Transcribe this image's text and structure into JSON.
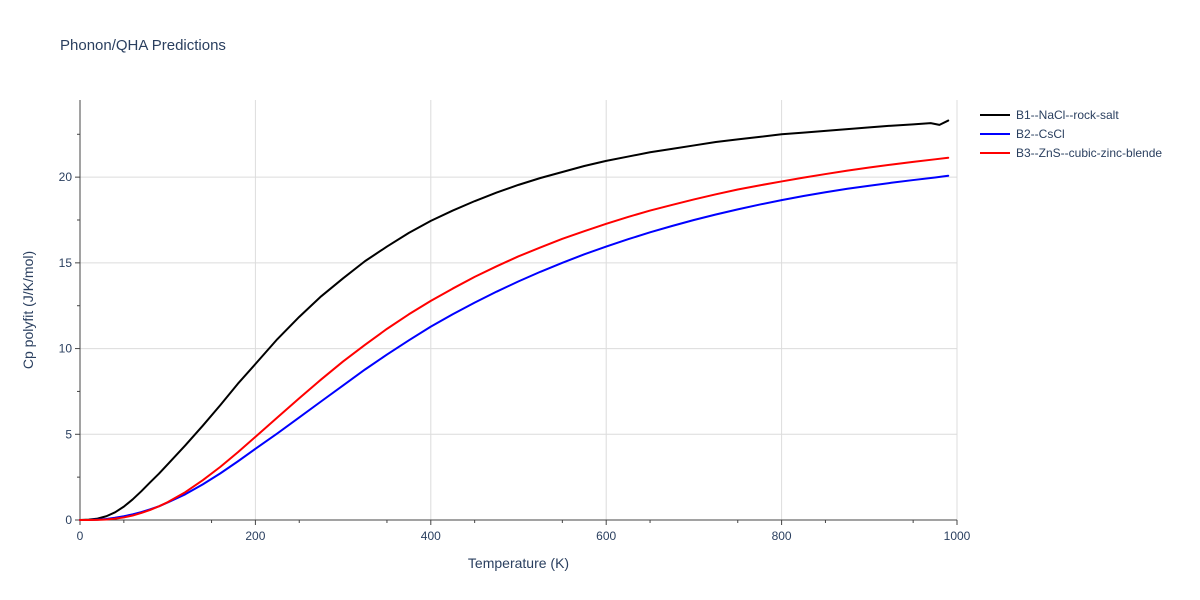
{
  "chart_data": {
    "type": "line",
    "title": "Phonon/QHA Predictions",
    "xlabel": "Temperature (K)",
    "ylabel": "Cp polyfit (J/K/mol)",
    "xlim": [
      0,
      1000
    ],
    "ylim": [
      0,
      24.5
    ],
    "xticks": [
      0,
      200,
      400,
      600,
      800,
      1000
    ],
    "yticks": [
      0,
      5,
      10,
      15,
      20
    ],
    "grid": true,
    "legend_position": "top-right outside",
    "series": [
      {
        "name": "B1--NaCl--rock-salt",
        "color": "#000000",
        "x": [
          0,
          10,
          20,
          30,
          40,
          50,
          60,
          70,
          80,
          90,
          100,
          120,
          140,
          160,
          180,
          200,
          225,
          250,
          275,
          300,
          325,
          350,
          375,
          400,
          425,
          450,
          475,
          500,
          525,
          550,
          575,
          600,
          625,
          650,
          675,
          700,
          725,
          750,
          775,
          800,
          825,
          850,
          875,
          900,
          925,
          950,
          970,
          980,
          990
        ],
        "y": [
          0,
          0.02,
          0.08,
          0.22,
          0.45,
          0.78,
          1.2,
          1.68,
          2.2,
          2.7,
          3.25,
          4.35,
          5.5,
          6.7,
          7.95,
          9.1,
          10.55,
          11.85,
          13.05,
          14.1,
          15.1,
          15.95,
          16.75,
          17.45,
          18.05,
          18.6,
          19.1,
          19.55,
          19.95,
          20.3,
          20.65,
          20.95,
          21.2,
          21.45,
          21.65,
          21.85,
          22.05,
          22.2,
          22.35,
          22.5,
          22.6,
          22.7,
          22.8,
          22.9,
          23.0,
          23.08,
          23.15,
          23.05,
          23.3
        ]
      },
      {
        "name": "B2--CsCl",
        "color": "#0000ff",
        "x": [
          0,
          10,
          20,
          30,
          40,
          50,
          60,
          70,
          80,
          90,
          100,
          120,
          140,
          160,
          180,
          200,
          225,
          250,
          275,
          300,
          325,
          350,
          375,
          400,
          425,
          450,
          475,
          500,
          525,
          550,
          575,
          600,
          625,
          650,
          675,
          700,
          725,
          750,
          775,
          800,
          825,
          850,
          875,
          900,
          925,
          950,
          975,
          990
        ],
        "y": [
          0,
          0.0,
          0.02,
          0.06,
          0.13,
          0.22,
          0.33,
          0.46,
          0.62,
          0.8,
          1.02,
          1.5,
          2.08,
          2.72,
          3.42,
          4.15,
          5.05,
          5.98,
          6.92,
          7.85,
          8.78,
          9.65,
          10.48,
          11.28,
          12.0,
          12.68,
          13.32,
          13.92,
          14.48,
          15.0,
          15.5,
          15.95,
          16.38,
          16.78,
          17.15,
          17.5,
          17.82,
          18.12,
          18.4,
          18.66,
          18.9,
          19.12,
          19.32,
          19.5,
          19.67,
          19.83,
          19.98,
          20.08
        ]
      },
      {
        "name": "B3--ZnS--cubic-zinc-blende",
        "color": "#ff0000",
        "x": [
          0,
          10,
          20,
          30,
          40,
          50,
          60,
          70,
          80,
          90,
          100,
          120,
          140,
          160,
          180,
          200,
          225,
          250,
          275,
          300,
          325,
          350,
          375,
          400,
          425,
          450,
          475,
          500,
          525,
          550,
          575,
          600,
          625,
          650,
          675,
          700,
          725,
          750,
          775,
          800,
          825,
          850,
          875,
          900,
          925,
          950,
          975,
          990
        ],
        "y": [
          0,
          0.0,
          0.01,
          0.03,
          0.08,
          0.15,
          0.26,
          0.41,
          0.59,
          0.8,
          1.04,
          1.62,
          2.32,
          3.1,
          3.95,
          4.85,
          5.98,
          7.1,
          8.2,
          9.25,
          10.22,
          11.15,
          12.0,
          12.78,
          13.5,
          14.18,
          14.8,
          15.38,
          15.9,
          16.4,
          16.85,
          17.28,
          17.68,
          18.05,
          18.38,
          18.7,
          19.0,
          19.28,
          19.52,
          19.75,
          19.97,
          20.18,
          20.38,
          20.56,
          20.73,
          20.89,
          21.04,
          21.13
        ]
      }
    ]
  }
}
